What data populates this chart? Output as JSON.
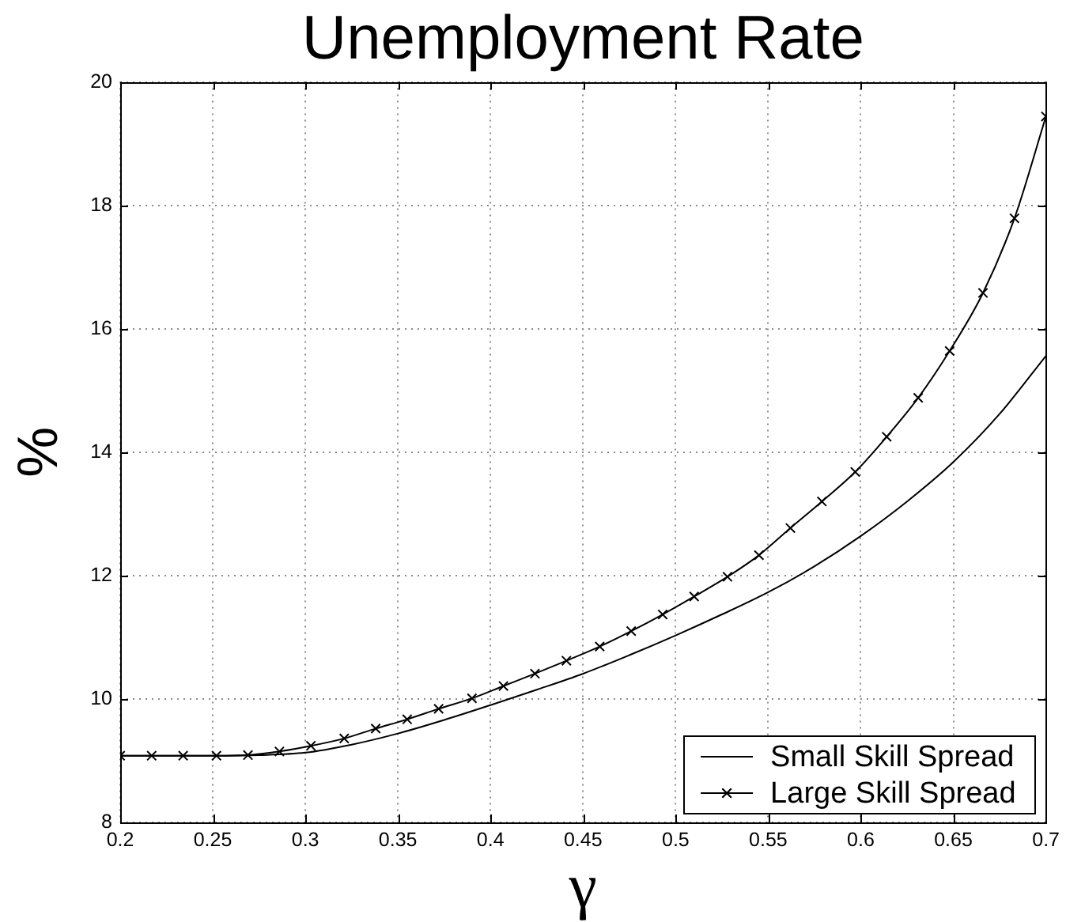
{
  "chart_data": {
    "type": "line",
    "title": "Unemployment Rate",
    "xlabel": "γ",
    "ylabel": "%",
    "xlim": [
      0.2,
      0.7
    ],
    "ylim": [
      8,
      20
    ],
    "xticks": [
      0.2,
      0.25,
      0.3,
      0.35,
      0.4,
      0.45,
      0.5,
      0.55,
      0.6,
      0.65,
      0.7
    ],
    "yticks": [
      8,
      10,
      12,
      14,
      16,
      18,
      20
    ],
    "grid": true,
    "legend": "bottom right",
    "series": [
      {
        "name": "Small Skill Spread",
        "color": "#000000",
        "marker": "none",
        "x": [
          0.2,
          0.225,
          0.25,
          0.275,
          0.3,
          0.325,
          0.35,
          0.375,
          0.4,
          0.425,
          0.45,
          0.475,
          0.5,
          0.525,
          0.55,
          0.575,
          0.6,
          0.625,
          0.65,
          0.675,
          0.7
        ],
        "values": [
          9.08,
          9.08,
          9.08,
          9.09,
          9.13,
          9.26,
          9.44,
          9.66,
          9.9,
          10.15,
          10.41,
          10.71,
          11.03,
          11.37,
          11.73,
          12.15,
          12.64,
          13.2,
          13.84,
          14.62,
          15.56
        ]
      },
      {
        "name": "Large Skill Spread",
        "color": "#000000",
        "marker": "cross",
        "x": [
          0.2,
          0.217,
          0.234,
          0.252,
          0.269,
          0.286,
          0.303,
          0.321,
          0.338,
          0.355,
          0.372,
          0.39,
          0.407,
          0.424,
          0.441,
          0.459,
          0.476,
          0.493,
          0.51,
          0.528,
          0.545,
          0.562,
          0.579,
          0.597,
          0.614,
          0.631,
          0.648,
          0.666,
          0.683,
          0.7
        ],
        "values": [
          9.08,
          9.08,
          9.08,
          9.08,
          9.09,
          9.15,
          9.24,
          9.36,
          9.52,
          9.67,
          9.84,
          10.01,
          10.21,
          10.41,
          10.62,
          10.85,
          11.1,
          11.37,
          11.66,
          11.98,
          12.33,
          12.77,
          13.2,
          13.68,
          14.25,
          14.88,
          15.64,
          16.58,
          17.79,
          19.44
        ]
      }
    ]
  }
}
